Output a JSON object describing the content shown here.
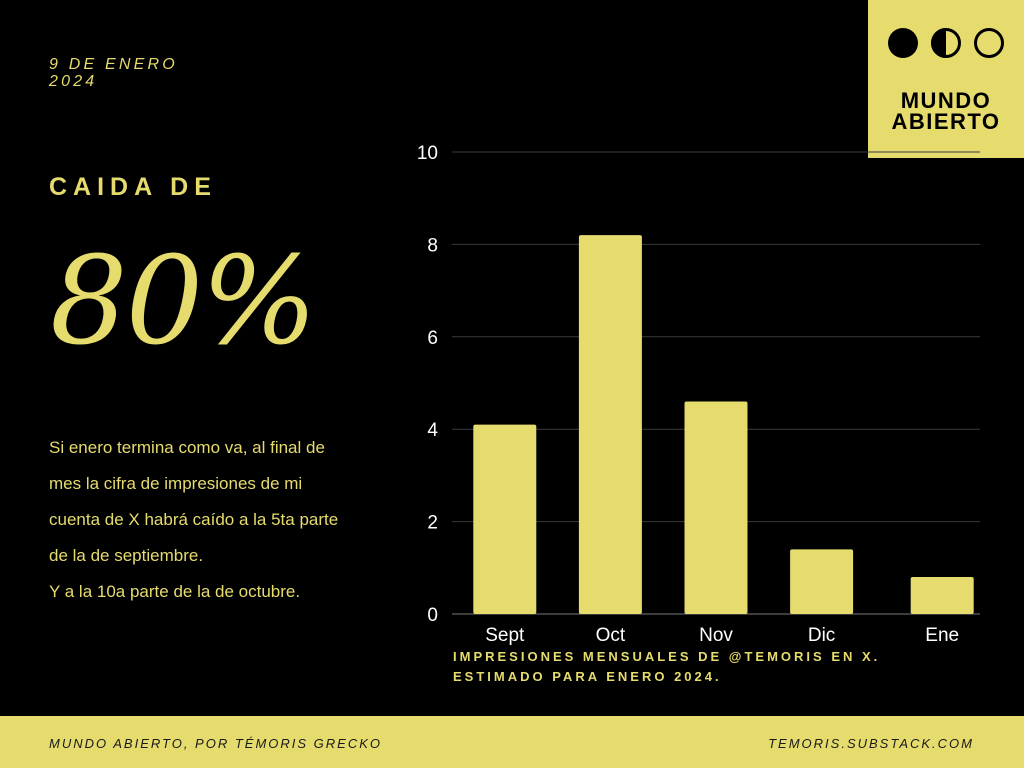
{
  "header": {
    "date_line1": "9 DE ENERO",
    "date_line2": "2024"
  },
  "headline": {
    "kicker": "CAIDA DE",
    "value": "80%"
  },
  "body": {
    "lines": [
      "Si enero termina como va, al final de",
      "mes la cifra de impresiones de mi",
      "cuenta de X habrá caído a la 5ta parte",
      "de la de septiembre.",
      "Y a la 10a parte de la de octubre."
    ]
  },
  "logo": {
    "line1": "MUNDO",
    "line2": "ABIERTO",
    "icons": [
      "filled-circle-icon",
      "half-circle-icon",
      "empty-circle-icon"
    ]
  },
  "chart_data": {
    "type": "bar",
    "categories": [
      "Sept",
      "Oct",
      "Nov",
      "Dic",
      "Ene"
    ],
    "values": [
      4.1,
      8.2,
      4.6,
      1.4,
      0.8
    ],
    "ylim": [
      0,
      10
    ],
    "yticks": [
      0,
      2,
      4,
      6,
      8,
      10
    ],
    "grid": true,
    "title": "",
    "xlabel": "",
    "ylabel": "",
    "bar_color": "#e6dc6e"
  },
  "caption": {
    "line1": "IMPRESIONES MENSUALES DE @TEMORIS EN X.",
    "line2": "ESTIMADO PARA ENERO 2024."
  },
  "footer": {
    "left": "MUNDO ABIERTO, POR TÉMORIS GRECKO",
    "right": "TEMORIS.SUBSTACK.COM"
  },
  "colors": {
    "accent": "#e6dc6e",
    "background": "#000000"
  }
}
